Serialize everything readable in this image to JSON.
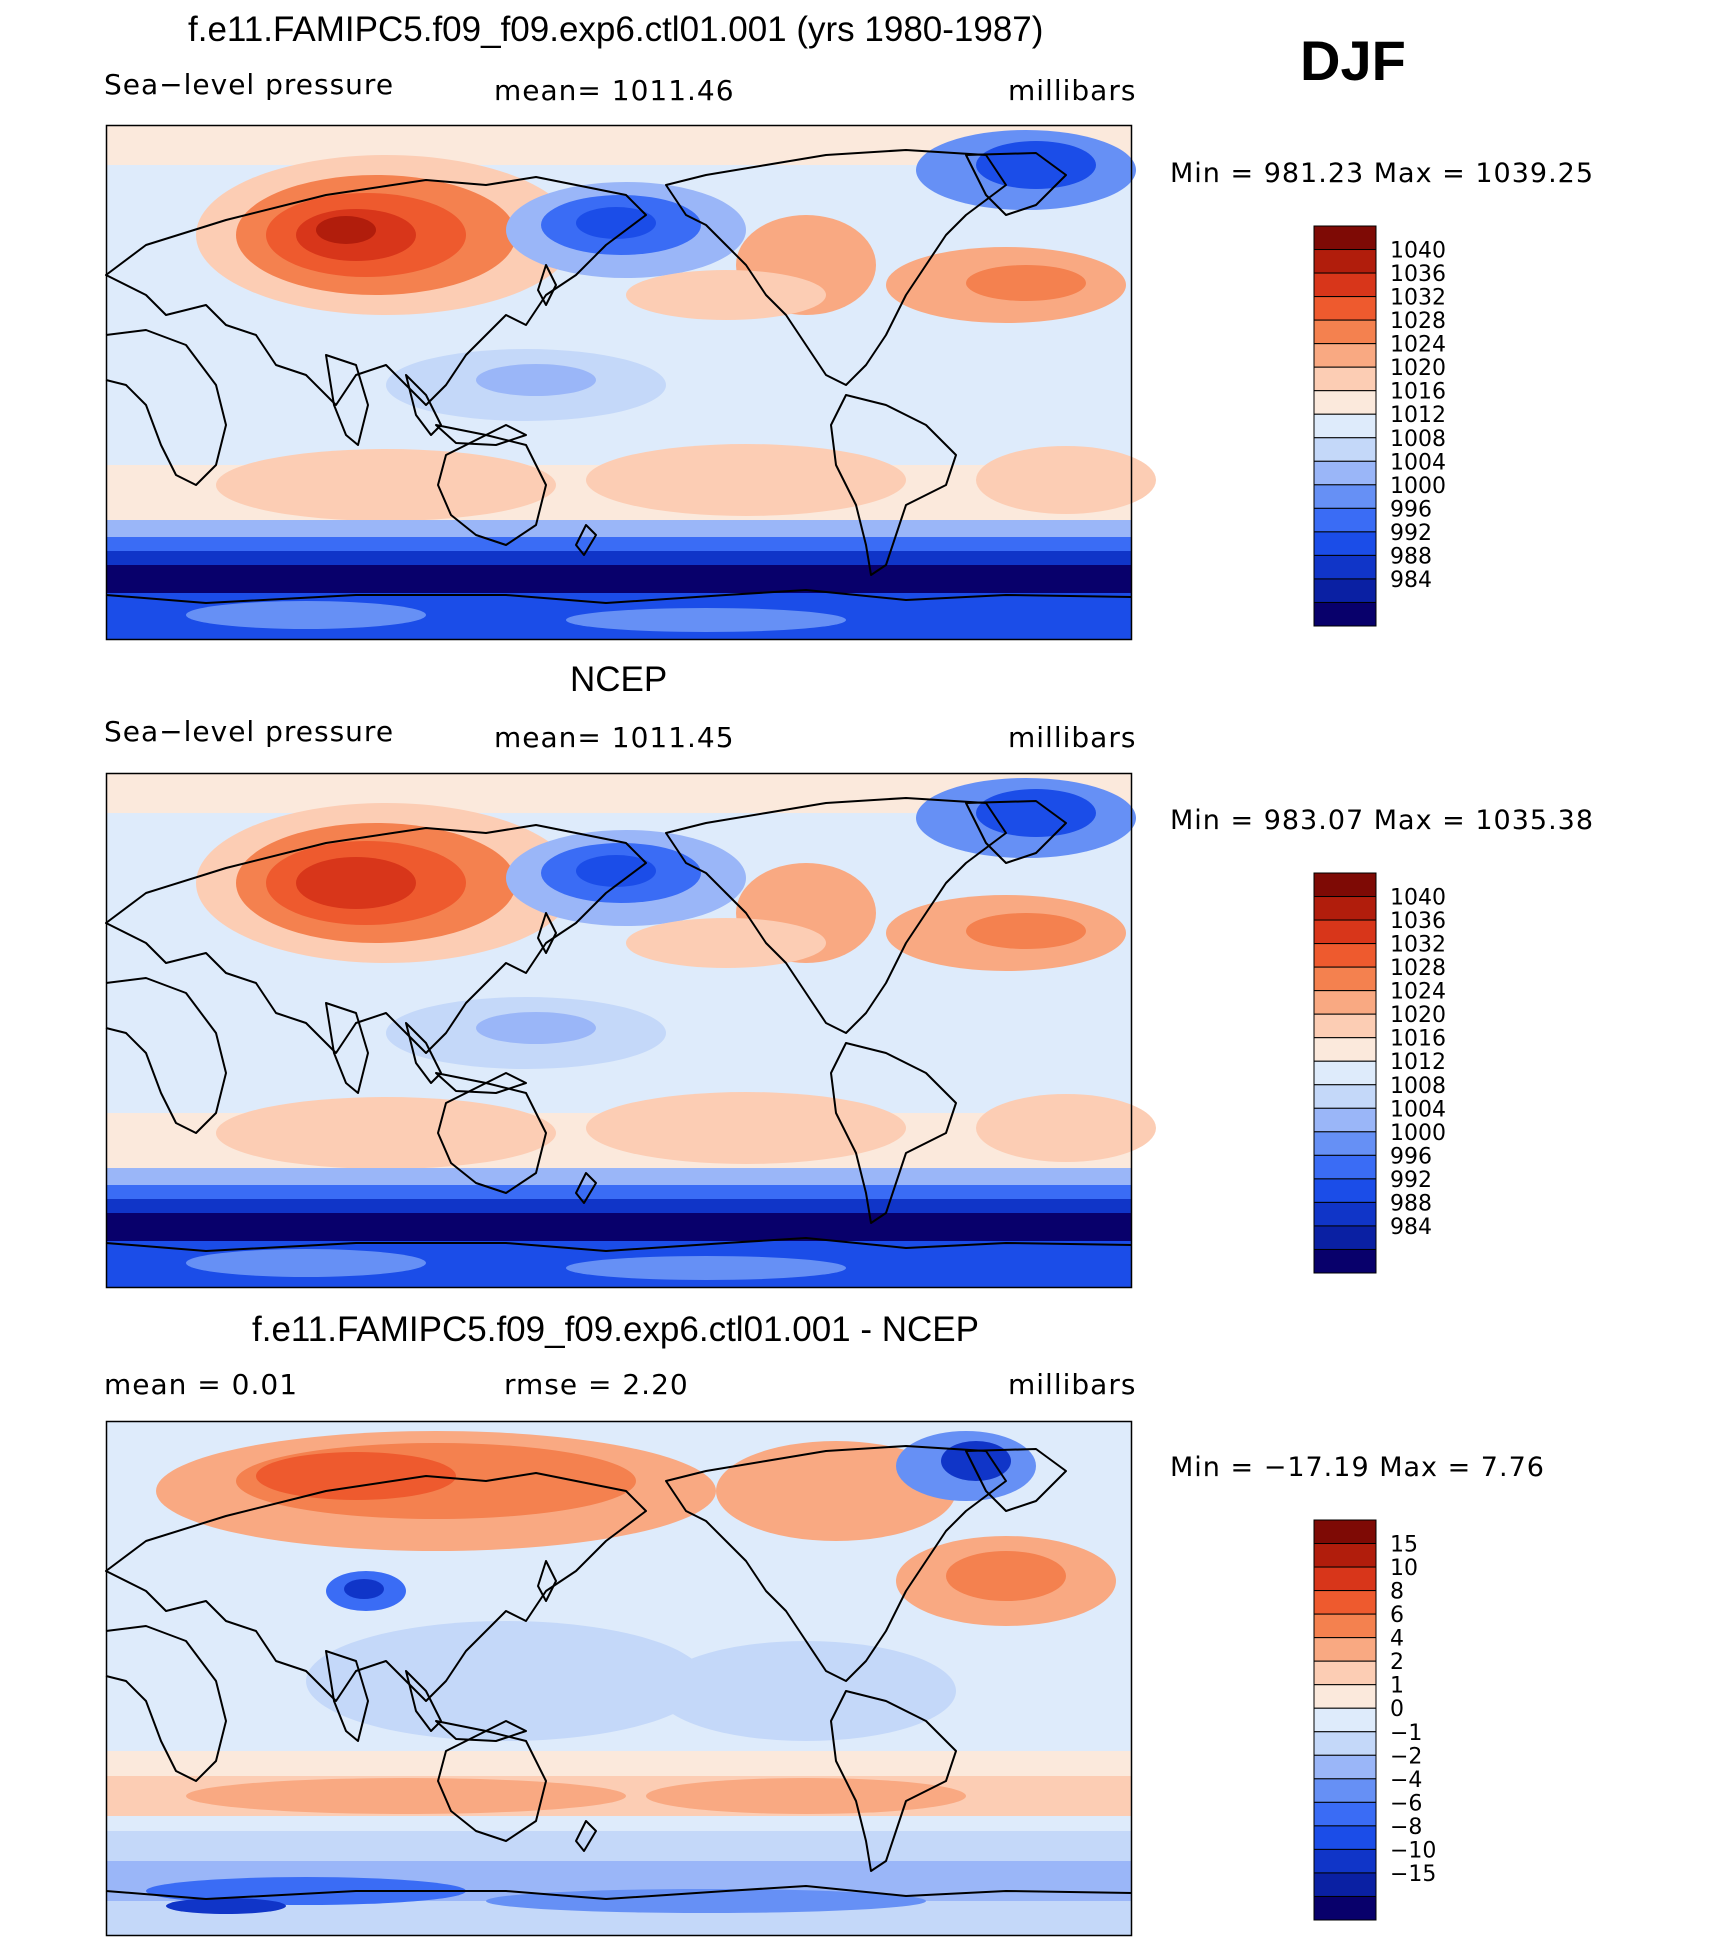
{
  "season": "DJF",
  "colors": {
    "abs": [
      "#08006b",
      "#0a20a3",
      "#1035c8",
      "#1b4de8",
      "#3a6cf5",
      "#6690f5",
      "#9ab6f8",
      "#c4d8f9",
      "#deebfb",
      "#fbe9dc",
      "#fccdb4",
      "#f9a982",
      "#f4814f",
      "#ee5a2e",
      "#d8361a",
      "#b11d0c",
      "#7e0a05"
    ],
    "diff": [
      "#08006b",
      "#0a20a3",
      "#1035c8",
      "#1b4de8",
      "#3a6cf5",
      "#6690f5",
      "#9ab6f8",
      "#c4d8f9",
      "#deebfb",
      "#fbe9dc",
      "#fccdb4",
      "#f9a982",
      "#f4814f",
      "#ee5a2e",
      "#d8361a",
      "#b11d0c",
      "#7e0a05"
    ]
  },
  "panels": [
    {
      "title": "f.e11.FAMIPC5.f09_f09.exp6.ctl01.001 (yrs 1980-1987)",
      "left_label": "Sea−level pressure",
      "center_label": "mean=  1011.46",
      "right_label": "millibars",
      "minmax": "Min  =  981.23  Max  =  1039.25",
      "variant": "model"
    },
    {
      "title": "NCEP",
      "left_label": "Sea−level pressure",
      "center_label": "mean=  1011.45",
      "right_label": "millibars",
      "minmax": "Min  =  983.07  Max  =  1035.38",
      "variant": "obs"
    },
    {
      "title": "f.e11.FAMIPC5.f09_f09.exp6.ctl01.001 - NCEP",
      "left_label": "mean  =     0.01",
      "center_label": "rmse  =     2.20",
      "right_label": "millibars",
      "minmax": "Min  =  −17.19  Max  =      7.76",
      "variant": "diff"
    }
  ],
  "colorbar_abs": [
    "1040",
    "1036",
    "1032",
    "1028",
    "1024",
    "1020",
    "1016",
    "1012",
    "1008",
    "1004",
    "1000",
    "996",
    "992",
    "988",
    "984"
  ],
  "colorbar_diff": [
    "15",
    "10",
    "8",
    "6",
    "4",
    "2",
    "1",
    "0",
    "−1",
    "−2",
    "−4",
    "−6",
    "−8",
    "−10",
    "−15"
  ]
}
